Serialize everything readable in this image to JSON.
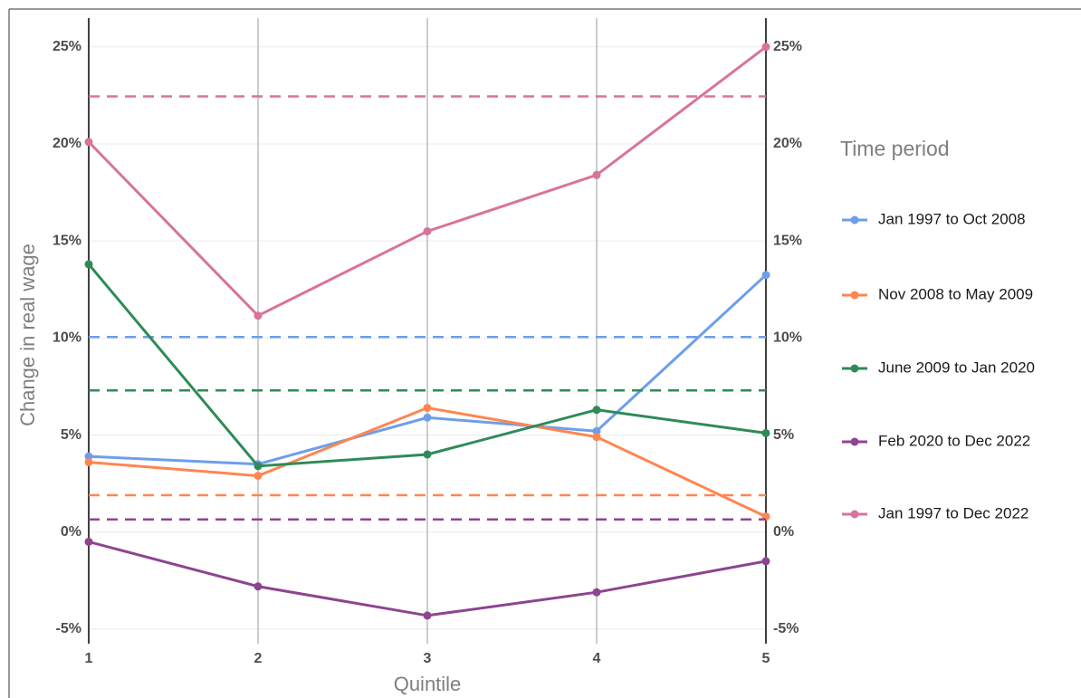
{
  "chart_data": {
    "type": "line",
    "x_label": "Quintile",
    "y_label": "Change in real wage",
    "legend_title": "Time period",
    "x": [
      1,
      2,
      3,
      4,
      5
    ],
    "xlim": [
      1,
      5
    ],
    "xticks": [
      1,
      2,
      3,
      4,
      5
    ],
    "ylim": [
      -5.75,
      26.95
    ],
    "yticks": [
      {
        "value": -5,
        "label": "-5%"
      },
      {
        "value": 0,
        "label": "0%"
      },
      {
        "value": 5,
        "label": "5%"
      },
      {
        "value": 10,
        "label": "10%"
      },
      {
        "value": 15,
        "label": "15%"
      },
      {
        "value": 20,
        "label": "20%"
      },
      {
        "value": 25,
        "label": "25%"
      }
    ],
    "grid": true,
    "legend": "right",
    "series": [
      {
        "name": "Jan 1997 to Oct 2008",
        "color": "#6d9eeb",
        "values": [
          3.9,
          3.5,
          5.9,
          5.2,
          13.25
        ],
        "average": 10.05
      },
      {
        "name": "Nov 2008 to May 2009",
        "color": "#ff8551",
        "values": [
          3.6,
          2.9,
          6.4,
          4.9,
          0.8
        ],
        "average": 1.9
      },
      {
        "name": "June 2009 to Jan 2020",
        "color": "#2e8b57",
        "values": [
          13.8,
          3.4,
          4.0,
          6.3,
          5.1
        ],
        "average": 7.3
      },
      {
        "name": "Feb 2020 to Dec 2022",
        "color": "#8e4490",
        "values": [
          -0.5,
          -2.8,
          -4.3,
          -3.1,
          -1.5
        ],
        "average": 0.65
      },
      {
        "name": "Jan 1997 to Dec 2022",
        "color": "#d8739c",
        "values": [
          20.1,
          11.15,
          15.5,
          18.4,
          25.0
        ],
        "average": 22.45
      }
    ]
  }
}
